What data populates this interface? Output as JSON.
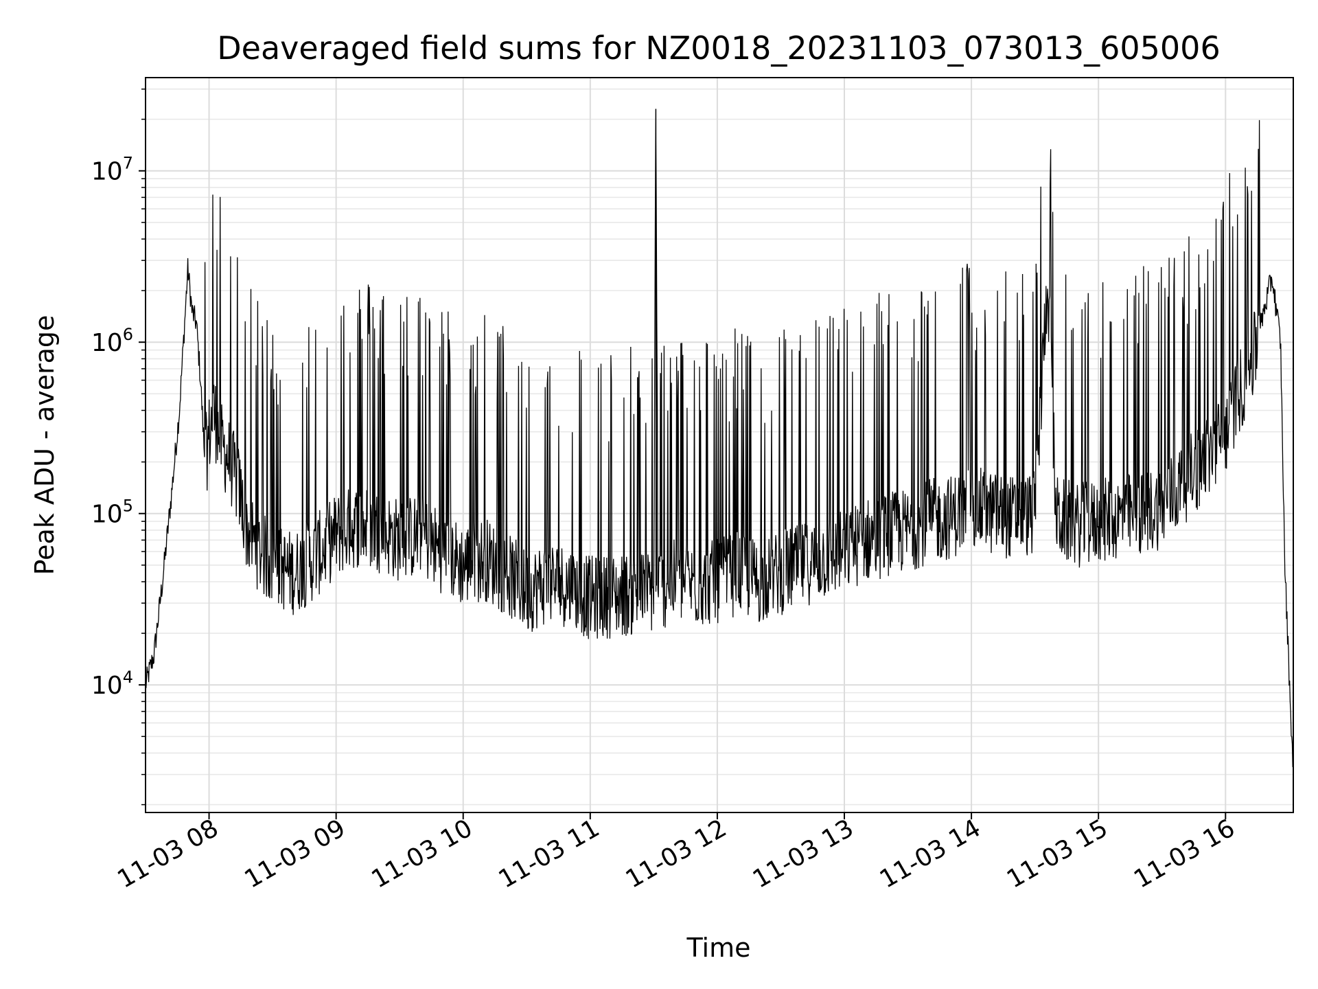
{
  "chart_data": {
    "type": "line",
    "title": "Deaveraged field sums for NZ0018_20231103_073013_605006",
    "xlabel": "Time",
    "ylabel": "Peak ADU - average",
    "yscale": "log",
    "xlim": [
      "11-03 07:30",
      "11-03 16:32"
    ],
    "ylim": [
      1800,
      35000000
    ],
    "grid": "major and minor",
    "line_color": "#000000",
    "x_ticks": [
      "11-03 08",
      "11-03 09",
      "11-03 10",
      "11-03 11",
      "11-03 12",
      "11-03 13",
      "11-03 14",
      "11-03 15",
      "11-03 16"
    ],
    "y_ticks": [
      {
        "value": 10000,
        "base": "10",
        "exp": "4"
      },
      {
        "value": 100000,
        "base": "10",
        "exp": "5"
      },
      {
        "value": 1000000,
        "base": "10",
        "exp": "6"
      },
      {
        "value": 10000000,
        "base": "10",
        "exp": "7"
      }
    ],
    "series": [
      {
        "values_time": [
          "07:30",
          "07:34",
          "07:38",
          "07:42",
          "07:46",
          "07:50",
          "07:52",
          "07:54",
          "07:56",
          "07:58",
          "08:02",
          "08:06",
          "08:10",
          "08:14",
          "08:18",
          "08:24",
          "08:30",
          "08:40",
          "08:50",
          "09:00",
          "09:10",
          "09:20",
          "09:30",
          "09:40",
          "09:50",
          "10:00",
          "10:10",
          "10:20",
          "10:30",
          "10:40",
          "10:50",
          "11:00",
          "11:10",
          "11:20",
          "11:30",
          "11:31",
          "11:32",
          "11:40",
          "11:50",
          "12:00",
          "12:10",
          "12:20",
          "12:30",
          "12:40",
          "12:50",
          "13:00",
          "13:10",
          "13:20",
          "13:30",
          "13:40",
          "13:50",
          "14:00",
          "14:10",
          "14:20",
          "14:30",
          "14:36",
          "14:40",
          "14:50",
          "15:00",
          "15:10",
          "15:20",
          "15:30",
          "15:40",
          "15:50",
          "16:00",
          "16:06",
          "16:12",
          "16:18",
          "16:22",
          "16:26",
          "16:28",
          "16:30",
          "16:32"
        ],
        "values": [
          10000,
          15000,
          40000,
          120000,
          400000,
          2700000,
          1500000,
          1300000,
          600000,
          200000,
          400000,
          250000,
          200000,
          140000,
          80000,
          60000,
          50000,
          45000,
          55000,
          75000,
          85000,
          80000,
          70000,
          75000,
          60000,
          50000,
          55000,
          45000,
          35000,
          40000,
          38000,
          32000,
          33000,
          34000,
          35000,
          23000000,
          36000,
          40000,
          38000,
          40000,
          45000,
          40000,
          45000,
          50000,
          55000,
          60000,
          70000,
          75000,
          80000,
          90000,
          95000,
          110000,
          100000,
          95000,
          100000,
          2500000,
          95000,
          85000,
          90000,
          95000,
          100000,
          110000,
          150000,
          200000,
          300000,
          500000,
          700000,
          1500000,
          2400000,
          1000000,
          50000,
          12000,
          3000
        ]
      }
    ]
  }
}
